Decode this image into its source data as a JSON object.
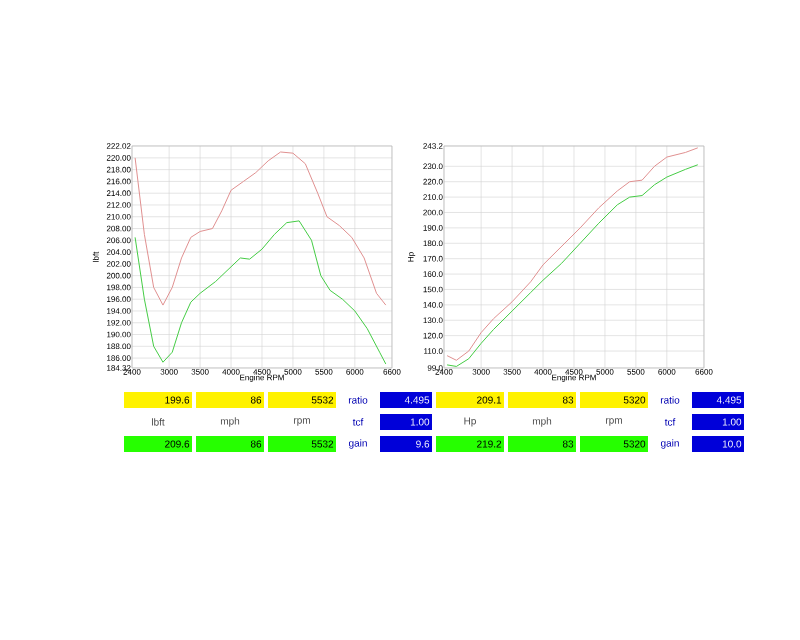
{
  "chart_data": [
    {
      "type": "line",
      "xlabel": "Engine RPM",
      "ylabel": "lbft",
      "grid": true,
      "marker": "none",
      "xlim": [
        2400,
        6600
      ],
      "xticks": [
        2400,
        3000,
        3500,
        4000,
        4500,
        5000,
        5500,
        6000,
        6600
      ],
      "ylim": [
        184.32,
        222.02
      ],
      "yticks": [
        {
          "value": 184.32,
          "label": "184.32"
        },
        {
          "value": 186,
          "label": "186.00"
        },
        {
          "value": 188,
          "label": "188.00"
        },
        {
          "value": 190,
          "label": "190.00"
        },
        {
          "value": 192,
          "label": "192.00"
        },
        {
          "value": 194,
          "label": "194.00"
        },
        {
          "value": 196,
          "label": "196.00"
        },
        {
          "value": 198,
          "label": "198.00"
        },
        {
          "value": 200,
          "label": "200.00"
        },
        {
          "value": 202,
          "label": "202.00"
        },
        {
          "value": 204,
          "label": "204.00"
        },
        {
          "value": 206,
          "label": "206.00"
        },
        {
          "value": 208,
          "label": "208.00"
        },
        {
          "value": 210,
          "label": "210.00"
        },
        {
          "value": 212,
          "label": "212.00"
        },
        {
          "value": 214,
          "label": "214.00"
        },
        {
          "value": 216,
          "label": "216.00"
        },
        {
          "value": 218,
          "label": "218.00"
        },
        {
          "value": 220,
          "label": "220.00"
        },
        {
          "value": 222.02,
          "label": "222.02"
        }
      ],
      "series": [
        {
          "color": "#e09090",
          "x": [
            2450,
            2600,
            2750,
            2900,
            3050,
            3200,
            3350,
            3500,
            3700,
            3850,
            4000,
            4200,
            4400,
            4600,
            4800,
            5000,
            5200,
            5400,
            5550,
            5750,
            5950,
            6150,
            6350,
            6500
          ],
          "values": [
            220,
            207,
            198,
            195,
            198,
            203,
            206.5,
            207.5,
            208,
            211,
            214.5,
            216,
            217.5,
            219.5,
            221,
            220.8,
            219,
            214,
            210,
            208.5,
            206.5,
            203,
            197,
            195
          ]
        },
        {
          "color": "#44cc44",
          "x": [
            2450,
            2600,
            2750,
            2900,
            3050,
            3200,
            3350,
            3500,
            3750,
            4000,
            4150,
            4300,
            4500,
            4700,
            4900,
            5100,
            5300,
            5450,
            5600,
            5800,
            6000,
            6200,
            6400,
            6500
          ],
          "values": [
            206.5,
            196,
            188,
            185.3,
            187,
            192,
            195.5,
            197,
            199,
            201.5,
            203,
            202.8,
            204.5,
            207,
            209,
            209.3,
            206,
            200,
            197.5,
            196,
            194,
            191,
            187,
            185
          ]
        }
      ],
      "annotations": [
        "199.6",
        "86",
        "5532",
        "ratio",
        "4.495",
        "lbft",
        "mph",
        "rpm",
        "tcf",
        "1.00",
        "209.6",
        "86",
        "5532",
        "gain",
        "9.6"
      ]
    },
    {
      "type": "line",
      "xlabel": "Engine RPM",
      "ylabel": "Hp",
      "grid": true,
      "marker": "none",
      "xlim": [
        2400,
        6600
      ],
      "xticks": [
        2400,
        3000,
        3500,
        4000,
        4500,
        5000,
        5500,
        6000,
        6600
      ],
      "ylim": [
        99.0,
        243.2
      ],
      "yticks": [
        {
          "value": 99.0,
          "label": "99.0"
        },
        {
          "value": 110,
          "label": "110.0"
        },
        {
          "value": 120,
          "label": "120.0"
        },
        {
          "value": 130,
          "label": "130.0"
        },
        {
          "value": 140,
          "label": "140.0"
        },
        {
          "value": 150,
          "label": "150.0"
        },
        {
          "value": 160,
          "label": "160.0"
        },
        {
          "value": 170,
          "label": "170.0"
        },
        {
          "value": 180,
          "label": "180.0"
        },
        {
          "value": 190,
          "label": "190.0"
        },
        {
          "value": 200,
          "label": "200.0"
        },
        {
          "value": 210,
          "label": "210.0"
        },
        {
          "value": 220,
          "label": "220.0"
        },
        {
          "value": 230,
          "label": "230.0"
        },
        {
          "value": 243.2,
          "label": "243.2"
        }
      ],
      "series": [
        {
          "color": "#e09090",
          "x": [
            2450,
            2600,
            2800,
            3000,
            3200,
            3500,
            3800,
            4000,
            4300,
            4600,
            4900,
            5200,
            5400,
            5600,
            5800,
            6000,
            6300,
            6500
          ],
          "values": [
            107,
            104,
            110,
            122,
            131,
            142,
            155,
            166,
            178,
            190,
            203,
            214,
            220,
            221,
            230,
            236,
            239,
            242
          ]
        },
        {
          "color": "#44cc44",
          "x": [
            2450,
            2600,
            2800,
            3000,
            3200,
            3500,
            3800,
            4000,
            4300,
            4600,
            4900,
            5200,
            5400,
            5600,
            5800,
            6000,
            6300,
            6500
          ],
          "values": [
            101,
            100,
            105,
            115,
            124,
            136,
            148,
            156,
            167,
            180,
            193,
            205,
            210,
            211,
            218,
            223,
            228,
            231
          ]
        }
      ],
      "annotations": [
        "209.1",
        "83",
        "5320",
        "ratio",
        "4.495",
        "Hp",
        "mph",
        "rpm",
        "tcf",
        "1.00",
        "219.2",
        "83",
        "5320",
        "gain",
        "10.0"
      ]
    }
  ]
}
